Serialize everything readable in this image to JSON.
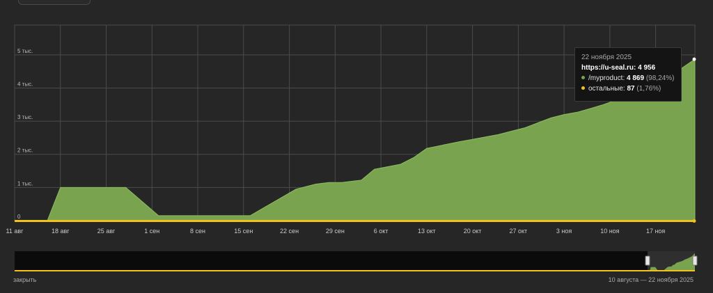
{
  "chart_data": {
    "type": "area",
    "x_labels": [
      "11 авг",
      "18 авг",
      "25 авг",
      "1 сен",
      "8 сен",
      "15 сен",
      "22 сен",
      "29 сен",
      "6 окт",
      "13 окт",
      "20 окт",
      "27 окт",
      "3 ноя",
      "10 ноя",
      "17 ноя"
    ],
    "y_tick_labels": [
      "0",
      "1 тыс.",
      "2 тыс.",
      "3 тыс.",
      "4 тыс.",
      "5 тыс."
    ],
    "y_ticks": [
      0,
      1000,
      2000,
      3000,
      4000,
      5000
    ],
    "ylim": [
      0,
      5900
    ],
    "x_range_days": [
      0,
      104
    ],
    "grid": true,
    "series": [
      {
        "name": "/myproduct",
        "color": "#7aa350",
        "x_days": [
          0,
          5,
          7,
          17,
          22,
          29,
          36,
          43,
          46,
          48,
          50,
          53,
          55,
          59,
          61,
          63,
          68,
          70,
          74,
          76,
          78,
          80,
          82,
          84,
          86,
          88,
          90,
          92,
          94,
          96,
          98,
          100,
          102,
          104
        ],
        "values": [
          0,
          0,
          1000,
          1000,
          150,
          150,
          150,
          950,
          1100,
          1150,
          1150,
          1220,
          1550,
          1700,
          1900,
          2180,
          2380,
          2450,
          2600,
          2700,
          2800,
          2950,
          3100,
          3200,
          3270,
          3380,
          3500,
          3640,
          3760,
          3880,
          4050,
          4300,
          4600,
          4869
        ]
      },
      {
        "name": "остальные",
        "color": "#f3c21b",
        "x_days": [
          0,
          104
        ],
        "values": [
          20,
          87
        ]
      }
    ],
    "tooltip": {
      "date": "22 ноября 2025",
      "site": "https://u-seal.ru:",
      "total": "4 956",
      "rows": [
        {
          "name": "/myproduct:",
          "value": "4 869",
          "pct": "(98,24%)",
          "color": "#7aa350"
        },
        {
          "name": "остальные:",
          "value": "87",
          "pct": "(1,76%)",
          "color": "#f3c21b"
        }
      ]
    }
  },
  "footer": {
    "close_label": "закрыть",
    "range_label": "10 августа — 22 ноября 2025"
  }
}
